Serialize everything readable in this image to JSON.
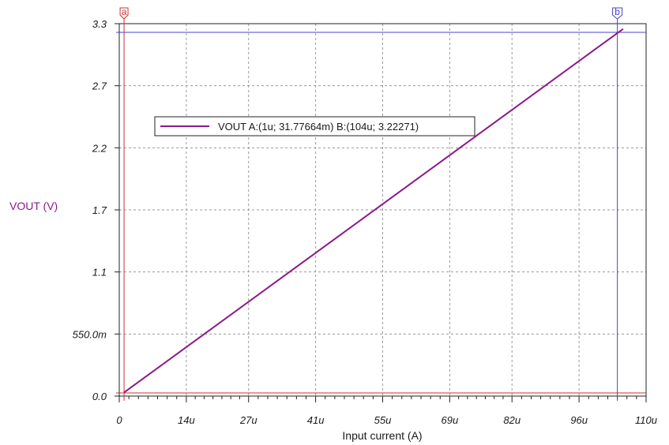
{
  "chart_data": {
    "type": "line",
    "xlabel": "Input current (A)",
    "ylabel": "VOUT (V)",
    "xlim": [
      0,
      110
    ],
    "ylim": [
      0,
      3.3
    ],
    "x_ticks": [
      {
        "value": 0,
        "label": "0"
      },
      {
        "value": 14,
        "label": "14u"
      },
      {
        "value": 27,
        "label": "27u"
      },
      {
        "value": 41,
        "label": "41u"
      },
      {
        "value": 55,
        "label": "55u"
      },
      {
        "value": 69,
        "label": "69u"
      },
      {
        "value": 82,
        "label": "82u"
      },
      {
        "value": 96,
        "label": "96u"
      },
      {
        "value": 110,
        "label": "110u"
      }
    ],
    "y_ticks": [
      {
        "value": 0,
        "label": "0.0"
      },
      {
        "value": 0.55,
        "label": "550.0m"
      },
      {
        "value": 1.1,
        "label": "1.1"
      },
      {
        "value": 1.65,
        "label": "1.7"
      },
      {
        "value": 2.2,
        "label": "2.2"
      },
      {
        "value": 2.75,
        "label": "2.7"
      },
      {
        "value": 3.3,
        "label": "3.3"
      }
    ],
    "grid": true,
    "series": [
      {
        "name": "VOUT",
        "color": "#8b1a8b",
        "x": [
          1,
          105.2
        ],
        "y": [
          0.03177664,
          3.2536
        ]
      }
    ],
    "legend": {
      "placement": "upper-left",
      "text": "VOUT   A:(1u; 31.77664m) B:(104u; 3.22271)"
    },
    "cursors": {
      "a": {
        "label": "a",
        "x": 1,
        "color": "#cc3333"
      },
      "b": {
        "label": "b",
        "x": 104,
        "y": 3.22271,
        "color": "#4444cc"
      }
    },
    "ylabel_color": "#8b1a8b"
  }
}
